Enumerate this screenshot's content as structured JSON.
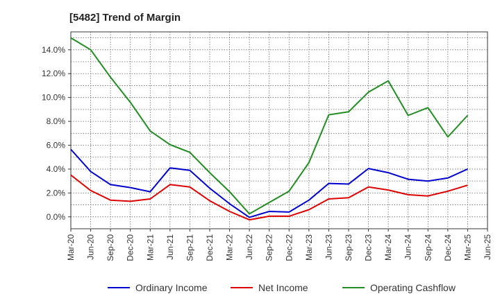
{
  "chart_data": {
    "type": "line",
    "title": "[5482]  Trend of Margin",
    "xlabel": "",
    "ylabel": "",
    "categories": [
      "Mar-20",
      "Jun-20",
      "Sep-20",
      "Dec-20",
      "Mar-21",
      "Jun-21",
      "Sep-21",
      "Dec-21",
      "Mar-22",
      "Jun-22",
      "Sep-22",
      "Dec-22",
      "Mar-23",
      "Jun-23",
      "Sep-23",
      "Dec-23",
      "Mar-24",
      "Jun-24",
      "Sep-24",
      "Dec-24",
      "Mar-25",
      "Jun-25"
    ],
    "y_ticks": [
      "0.0%",
      "2.0%",
      "4.0%",
      "6.0%",
      "8.0%",
      "10.0%",
      "12.0%",
      "14.0%"
    ],
    "y_tick_values": [
      0,
      2,
      4,
      6,
      8,
      10,
      12,
      14
    ],
    "ylim": [
      -1.0,
      15.5
    ],
    "grid": true,
    "legend_position": "bottom",
    "series": [
      {
        "name": "Ordinary Income",
        "color": "#0000cc",
        "values": [
          5.65,
          3.8,
          2.7,
          2.45,
          2.1,
          4.1,
          3.9,
          2.4,
          1.1,
          -0.05,
          0.45,
          0.4,
          1.4,
          2.8,
          2.75,
          4.05,
          3.7,
          3.15,
          3.0,
          3.25,
          4.0,
          null
        ]
      },
      {
        "name": "Net Income",
        "color": "#dd0000",
        "values": [
          3.5,
          2.2,
          1.4,
          1.3,
          1.5,
          2.7,
          2.5,
          1.35,
          0.45,
          -0.25,
          0.05,
          0.05,
          0.6,
          1.5,
          1.6,
          2.5,
          2.25,
          1.85,
          1.75,
          2.15,
          2.65,
          null
        ]
      },
      {
        "name": "Operating Cashflow",
        "color": "#228b22",
        "values": [
          15.0,
          14.0,
          11.7,
          9.6,
          7.2,
          6.05,
          5.4,
          3.7,
          2.1,
          0.25,
          1.2,
          2.15,
          4.55,
          8.55,
          8.8,
          10.45,
          11.4,
          8.5,
          9.15,
          6.7,
          8.5,
          null
        ]
      }
    ]
  }
}
